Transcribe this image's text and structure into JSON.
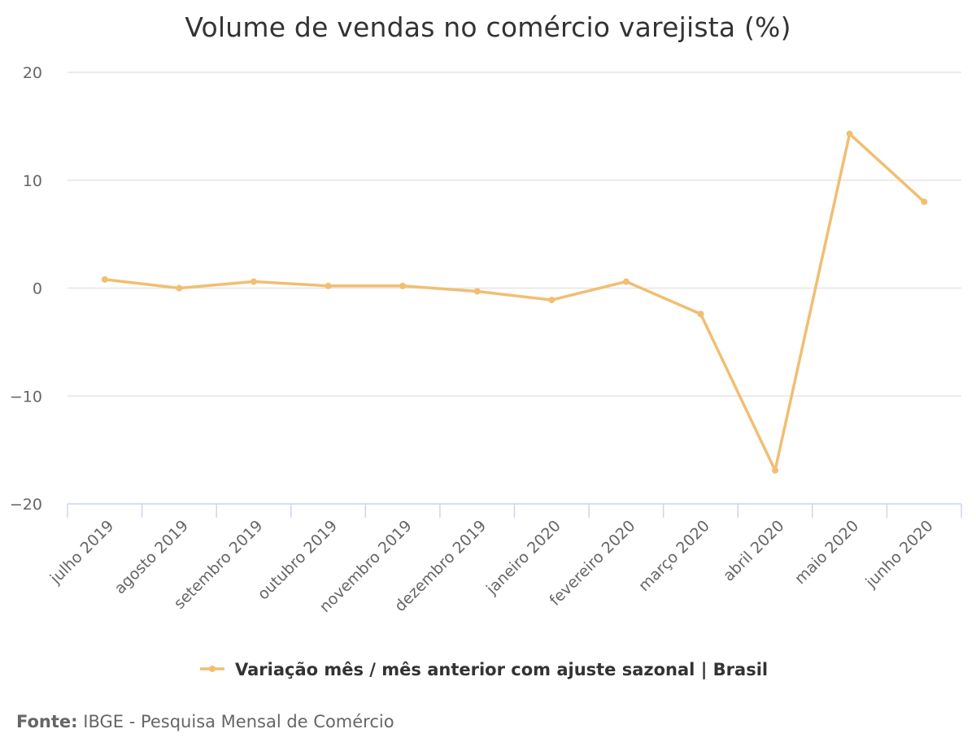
{
  "chart_data": {
    "type": "line",
    "title": "Volume de vendas no comércio varejista (%)",
    "categories": [
      "julho 2019",
      "agosto 2019",
      "setembro 2019",
      "outubro 2019",
      "novembro 2019",
      "dezembro 2019",
      "janeiro 2020",
      "fevereiro 2020",
      "março 2020",
      "abril 2020",
      "maio 2020",
      "junho 2020"
    ],
    "series": [
      {
        "name": "Variação mês / mês anterior com ajuste sazonal | Brasil",
        "values": [
          0.8,
          0.0,
          0.6,
          0.2,
          0.2,
          -0.3,
          -1.1,
          0.6,
          -2.4,
          -16.9,
          14.3,
          8.0
        ],
        "color": "#f1be72"
      }
    ],
    "ylim": [
      -20,
      20
    ],
    "yticks": [
      20,
      10,
      0,
      -10,
      -20
    ],
    "ytick_labels": [
      "20",
      "10",
      "0",
      "−10",
      "−20"
    ],
    "grid": true,
    "legend_position": "bottom-center"
  },
  "source": {
    "label": "Fonte:",
    "text": "IBGE - Pesquisa Mensal de Comércio"
  }
}
